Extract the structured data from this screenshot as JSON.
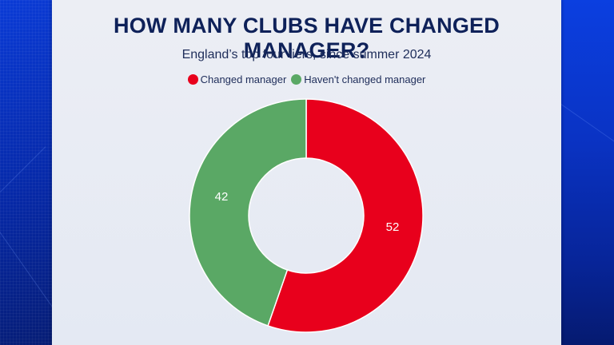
{
  "title": "HOW MANY CLUBS HAVE CHANGED MANAGER?",
  "subtitle": "England’s top four tiers, since summer 2024",
  "legend": [
    {
      "label": "Changed manager",
      "color": "#e8001c"
    },
    {
      "label": "Haven't changed manager",
      "color": "#5aa865"
    }
  ],
  "labels": {
    "changed": "52",
    "not_changed": "42"
  },
  "chart_data": {
    "type": "pie",
    "variant": "donut",
    "title": "HOW MANY CLUBS HAVE CHANGED MANAGER?",
    "subtitle": "England’s top four tiers, since summer 2024",
    "categories": [
      "Changed manager",
      "Haven't changed manager"
    ],
    "values": [
      52,
      42
    ],
    "colors": [
      "#e8001c",
      "#5aa865"
    ],
    "legend_position": "top",
    "data_labels": true
  }
}
